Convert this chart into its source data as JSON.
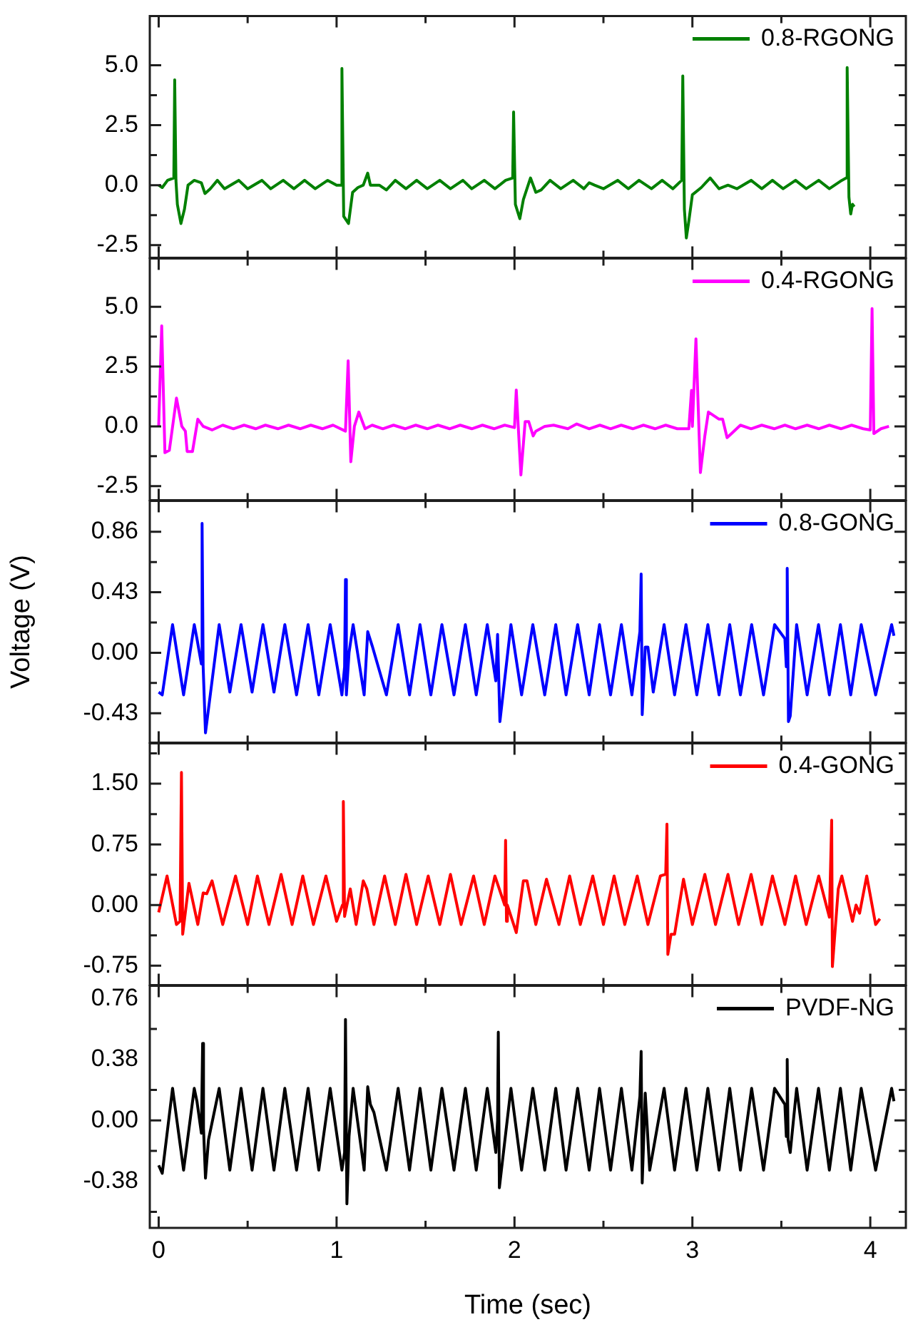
{
  "chart_data": [
    {
      "type": "line",
      "legend": "top right",
      "tick_labels": "y",
      "xlim": [
        -0.05,
        4.2
      ],
      "xticks": [
        0,
        {
          "value": 0.5,
          "label": null
        },
        1,
        {
          "value": 1.5,
          "label": null
        },
        2,
        {
          "value": 2.5,
          "label": null
        },
        3,
        {
          "value": 3.5,
          "label": null
        },
        4
      ],
      "ylim": [
        -3.03,
        7.05
      ],
      "yticks": [
        -2.5,
        {
          "value": -1.25,
          "label": null
        },
        {
          "value": 0,
          "label": "0.0"
        },
        {
          "value": 1.25,
          "label": null
        },
        2.5,
        {
          "value": 3.75,
          "label": null
        },
        {
          "value": 5,
          "label": "5.0"
        }
      ],
      "series": [
        {
          "name": "0.8-RGONG",
          "color": "#008000",
          "x": [
            0,
            0.02,
            0.05,
            0.085,
            0.09,
            0.097,
            0.105,
            0.125,
            0.145,
            0.165,
            0.2,
            0.24,
            0.26,
            0.29,
            0.33,
            0.37,
            0.45,
            0.5,
            0.58,
            0.63,
            0.7,
            0.76,
            0.82,
            0.88,
            0.95,
            1.0,
            1.025,
            1.03,
            1.04,
            1.067,
            1.09,
            1.12,
            1.15,
            1.175,
            1.19,
            1.24,
            1.28,
            1.33,
            1.39,
            1.45,
            1.51,
            1.58,
            1.64,
            1.71,
            1.76,
            1.83,
            1.89,
            1.95,
            1.99,
            1.995,
            2.005,
            2.03,
            2.05,
            2.09,
            2.12,
            2.15,
            2.2,
            2.26,
            2.33,
            2.39,
            2.42,
            2.45,
            2.5,
            2.58,
            2.64,
            2.7,
            2.77,
            2.83,
            2.89,
            2.94,
            2.946,
            2.955,
            2.966,
            2.98,
            3.0,
            3.05,
            3.1,
            3.15,
            3.2,
            3.25,
            3.33,
            3.39,
            3.45,
            3.51,
            3.58,
            3.64,
            3.71,
            3.77,
            3.84,
            3.865,
            3.87,
            3.88,
            3.89,
            3.9,
            3.91
          ],
          "values": [
            0,
            -0.1,
            0.2,
            0.3,
            4.39,
            0.2,
            -0.8,
            -1.6,
            -1.0,
            0,
            0.2,
            0.1,
            -0.35,
            -0.15,
            0.2,
            -0.15,
            0.2,
            -0.15,
            0.2,
            -0.15,
            0.2,
            -0.15,
            0.2,
            -0.15,
            0.2,
            0,
            0,
            4.86,
            -1.3,
            -1.6,
            -0.3,
            -0.1,
            0,
            0.5,
            0,
            0,
            -0.2,
            0.2,
            -0.15,
            0.2,
            -0.15,
            0.2,
            -0.15,
            0.2,
            -0.15,
            0.2,
            -0.15,
            0.2,
            0.3,
            3.05,
            -0.8,
            -1.4,
            -0.6,
            0.3,
            -0.3,
            -0.2,
            0.2,
            -0.15,
            0.2,
            -0.15,
            0.1,
            0,
            -0.15,
            0.2,
            -0.15,
            0.2,
            -0.15,
            0.2,
            -0.15,
            0.2,
            4.55,
            -1.0,
            -2.2,
            -1.5,
            -0.4,
            -0.1,
            0.3,
            -0.15,
            0,
            -0.15,
            0.2,
            -0.15,
            0.2,
            -0.15,
            0.2,
            -0.15,
            0.2,
            -0.15,
            0.2,
            0.3,
            4.9,
            -0.5,
            -1.2,
            -0.8,
            -0.9
          ]
        }
      ]
    },
    {
      "type": "line",
      "legend": "top right",
      "tick_labels": "y",
      "xlim": [
        -0.05,
        4.2
      ],
      "xticks": [
        0,
        {
          "value": 0.5,
          "label": null
        },
        1,
        {
          "value": 1.5,
          "label": null
        },
        2,
        {
          "value": 2.5,
          "label": null
        },
        3,
        {
          "value": 3.5,
          "label": null
        },
        4
      ],
      "ylim": [
        -3.09,
        7.02
      ],
      "yticks": [
        -2.5,
        {
          "value": -1.25,
          "label": null
        },
        {
          "value": 0,
          "label": "0.0"
        },
        {
          "value": 1.25,
          "label": null
        },
        2.5,
        {
          "value": 3.75,
          "label": null
        },
        {
          "value": 5,
          "label": "5.0"
        }
      ],
      "series": [
        {
          "name": "0.4-RGONG",
          "color": "#ff00ff",
          "x": [
            0,
            0.017,
            0.035,
            0.06,
            0.1,
            0.13,
            0.15,
            0.16,
            0.19,
            0.22,
            0.25,
            0.3,
            0.36,
            0.42,
            0.48,
            0.545,
            0.6,
            0.67,
            0.73,
            0.795,
            0.855,
            0.92,
            0.98,
            1.05,
            1.065,
            1.08,
            1.1,
            1.125,
            1.145,
            1.16,
            1.2,
            1.26,
            1.32,
            1.385,
            1.445,
            1.51,
            1.57,
            1.635,
            1.695,
            1.76,
            1.82,
            1.885,
            1.945,
            2.0,
            2.01,
            2.036,
            2.06,
            2.08,
            2.105,
            2.12,
            2.17,
            2.22,
            2.3,
            2.35,
            2.42,
            2.48,
            2.54,
            2.6,
            2.665,
            2.725,
            2.79,
            2.85,
            2.915,
            2.98,
            2.995,
            3.0,
            3.02,
            3.045,
            3.07,
            3.09,
            3.15,
            3.17,
            3.195,
            3.22,
            3.27,
            3.33,
            3.39,
            3.46,
            3.52,
            3.58,
            3.645,
            3.71,
            3.77,
            3.835,
            3.895,
            3.96,
            4.0,
            4.01,
            4.02,
            4.06,
            4.105
          ],
          "values": [
            0,
            4.2,
            -1.1,
            -1.0,
            1.18,
            0,
            -0.2,
            -1.05,
            -1.05,
            0.3,
            0,
            -0.15,
            0.05,
            -0.1,
            0.05,
            -0.1,
            0.05,
            -0.1,
            0.05,
            -0.1,
            0.05,
            -0.1,
            0.05,
            -0.2,
            2.74,
            -1.48,
            0,
            0.6,
            0.2,
            -0.1,
            0.05,
            -0.1,
            0.05,
            -0.1,
            0.05,
            -0.1,
            0.05,
            -0.1,
            0.05,
            -0.1,
            0.05,
            -0.1,
            0.05,
            -0.05,
            1.52,
            -2.03,
            0.2,
            0.2,
            -0.4,
            -0.2,
            0,
            0.05,
            -0.1,
            0.1,
            -0.1,
            0.05,
            -0.1,
            0.05,
            -0.1,
            0.05,
            -0.1,
            0.05,
            -0.1,
            -0.1,
            1.5,
            0,
            3.66,
            -1.93,
            -0.4,
            0.6,
            0.3,
            0.3,
            -0.47,
            -0.3,
            0.05,
            -0.1,
            0.05,
            -0.1,
            0.05,
            -0.1,
            0.05,
            -0.1,
            0.05,
            -0.1,
            0.05,
            -0.1,
            -0.15,
            4.92,
            -0.3,
            -0.1,
            0
          ]
        }
      ]
    },
    {
      "type": "line",
      "legend": "top right",
      "tick_labels": "y",
      "ylabel": "Voltage (V)",
      "xlim": [
        -0.05,
        4.2
      ],
      "xticks": [
        0,
        {
          "value": 0.5,
          "label": null
        },
        1,
        {
          "value": 1.5,
          "label": null
        },
        2,
        {
          "value": 2.5,
          "label": null
        },
        3,
        {
          "value": 3.5,
          "label": null
        },
        4
      ],
      "ylim": [
        -0.64,
        1.08
      ],
      "yticks": [
        -0.43,
        {
          "value": -0.215,
          "label": null
        },
        {
          "value": 0,
          "label": "0.00"
        },
        {
          "value": 0.215,
          "label": null
        },
        0.43,
        {
          "value": 0.645,
          "label": null
        },
        0.86
      ],
      "series": [
        {
          "name": "0.8-GONG",
          "color": "#0000ff",
          "x": [
            0,
            0.02,
            0.078,
            0.14,
            0.2,
            0.215,
            0.24,
            0.244,
            0.25,
            0.263,
            0.28,
            0.34,
            0.4,
            0.463,
            0.525,
            0.586,
            0.648,
            0.709,
            0.775,
            0.84,
            0.9,
            0.964,
            1.03,
            1.045,
            1.05,
            1.055,
            1.07,
            1.093,
            1.155,
            1.175,
            1.2,
            1.28,
            1.346,
            1.41,
            1.469,
            1.53,
            1.592,
            1.66,
            1.724,
            1.785,
            1.847,
            1.895,
            1.905,
            1.918,
            1.98,
            2.04,
            2.103,
            2.17,
            2.232,
            2.29,
            2.355,
            2.42,
            2.478,
            2.54,
            2.601,
            2.66,
            2.705,
            2.712,
            2.718,
            2.735,
            2.75,
            2.78,
            2.841,
            2.9,
            2.964,
            3.025,
            3.087,
            3.15,
            3.21,
            3.27,
            3.333,
            3.4,
            3.462,
            3.52,
            3.528,
            3.533,
            3.54,
            3.55,
            3.586,
            3.645,
            3.709,
            3.77,
            3.832,
            3.89,
            3.949,
            4.03,
            4.12,
            4.133
          ],
          "values": [
            -0.28,
            -0.3,
            0.2,
            -0.3,
            0.2,
            0.1,
            -0.08,
            0.92,
            -0.1,
            -0.57,
            -0.4,
            0.2,
            -0.28,
            0.2,
            -0.28,
            0.2,
            -0.28,
            0.2,
            -0.3,
            0.2,
            -0.3,
            0.2,
            -0.3,
            -0.1,
            0.52,
            -0.3,
            0,
            0.2,
            -0.3,
            0.15,
            0.05,
            -0.3,
            0.2,
            -0.3,
            0.2,
            -0.3,
            0.2,
            -0.3,
            0.2,
            -0.3,
            0.2,
            -0.2,
            0.13,
            -0.49,
            0.2,
            -0.3,
            0.2,
            -0.3,
            0.2,
            -0.3,
            0.2,
            -0.3,
            0.2,
            -0.3,
            0.2,
            -0.3,
            0.15,
            0.56,
            -0.44,
            0.04,
            0.04,
            -0.28,
            0.2,
            -0.3,
            0.2,
            -0.3,
            0.2,
            -0.3,
            0.2,
            -0.3,
            0.2,
            -0.3,
            0.2,
            0.1,
            -0.1,
            0.6,
            -0.49,
            -0.45,
            0.2,
            -0.3,
            0.2,
            -0.3,
            0.2,
            -0.3,
            0.2,
            -0.3,
            0.2,
            0.12
          ]
        }
      ]
    },
    {
      "type": "line",
      "legend": "top right",
      "tick_labels": "y",
      "xlim": [
        -0.05,
        4.2
      ],
      "xticks": [
        0,
        {
          "value": 0.5,
          "label": null
        },
        1,
        {
          "value": 1.5,
          "label": null
        },
        2,
        {
          "value": 2.5,
          "label": null
        },
        3,
        {
          "value": 3.5,
          "label": null
        },
        4
      ],
      "ylim": [
        -0.99,
        2.0
      ],
      "yticks": [
        -0.75,
        {
          "value": -0.375,
          "label": null
        },
        {
          "value": 0,
          "label": "0.00"
        },
        {
          "value": 0.375,
          "label": null
        },
        0.75,
        {
          "value": 1.125,
          "label": null
        },
        {
          "value": 1.5,
          "label": "1.50"
        },
        {
          "value": 1.875,
          "label": null
        }
      ],
      "series": [
        {
          "name": "0.4-GONG",
          "color": "#ff0000",
          "x": [
            0,
            0.047,
            0.1,
            0.12,
            0.128,
            0.135,
            0.17,
            0.22,
            0.25,
            0.27,
            0.3,
            0.36,
            0.432,
            0.5,
            0.555,
            0.62,
            0.688,
            0.75,
            0.81,
            0.87,
            0.94,
            1.0,
            1.033,
            1.038,
            1.045,
            1.077,
            1.11,
            1.15,
            1.17,
            1.21,
            1.27,
            1.33,
            1.39,
            1.45,
            1.515,
            1.58,
            1.64,
            1.7,
            1.77,
            1.83,
            1.89,
            1.945,
            1.95,
            1.955,
            1.96,
            2.01,
            2.05,
            2.07,
            2.12,
            2.18,
            2.25,
            2.31,
            2.37,
            2.44,
            2.5,
            2.56,
            2.62,
            2.69,
            2.75,
            2.82,
            2.85,
            2.857,
            2.862,
            2.88,
            2.9,
            2.95,
            3.0,
            3.07,
            3.13,
            3.2,
            3.26,
            3.33,
            3.39,
            3.45,
            3.52,
            3.58,
            3.64,
            3.71,
            3.77,
            3.783,
            3.787,
            3.82,
            3.84,
            3.9,
            3.92,
            3.94,
            3.98,
            4.03,
            4.054
          ],
          "values": [
            -0.09,
            0.36,
            -0.24,
            -0.2,
            1.64,
            -0.36,
            0.27,
            -0.24,
            0.15,
            0.14,
            0.3,
            -0.24,
            0.36,
            -0.24,
            0.36,
            -0.24,
            0.38,
            -0.24,
            0.36,
            -0.24,
            0.36,
            -0.2,
            0,
            1.28,
            -0.14,
            0.2,
            -0.24,
            0.3,
            0.2,
            -0.24,
            0.36,
            -0.24,
            0.38,
            -0.24,
            0.36,
            -0.24,
            0.38,
            -0.24,
            0.36,
            -0.24,
            0.36,
            0,
            0.8,
            -0.2,
            0,
            -0.34,
            0.3,
            0.3,
            -0.24,
            0.32,
            -0.24,
            0.36,
            -0.24,
            0.36,
            -0.24,
            0.36,
            -0.24,
            0.36,
            -0.24,
            0.36,
            0.38,
            1.0,
            -0.61,
            -0.36,
            -0.36,
            0.32,
            -0.24,
            0.38,
            -0.24,
            0.38,
            -0.24,
            0.38,
            -0.24,
            0.36,
            -0.24,
            0.36,
            -0.24,
            0.36,
            -0.15,
            1.05,
            -0.76,
            0.2,
            0.36,
            -0.2,
            0,
            -0.1,
            0.36,
            -0.24,
            -0.17
          ]
        }
      ]
    },
    {
      "type": "line",
      "legend": "top right",
      "xlabel": "Time (sec)",
      "xlim": [
        -0.05,
        4.2
      ],
      "xticks": [
        0,
        {
          "value": 0.5,
          "label": null
        },
        1,
        {
          "value": 1.5,
          "label": null
        },
        2,
        {
          "value": 2.5,
          "label": null
        },
        3,
        {
          "value": 3.5,
          "label": null
        },
        4
      ],
      "ylim": [
        -0.67,
        0.84
      ],
      "yticks": [
        {
          "value": -0.57,
          "label": null
        },
        -0.38,
        {
          "value": -0.19,
          "label": null
        },
        {
          "value": 0,
          "label": "0.00"
        },
        {
          "value": 0.19,
          "label": null
        },
        0.38,
        {
          "value": 0.57,
          "label": null
        },
        0.76
      ],
      "series": [
        {
          "name": "PVDF-NG",
          "color": "#000000",
          "x": [
            0,
            0.02,
            0.078,
            0.14,
            0.2,
            0.215,
            0.24,
            0.247,
            0.252,
            0.263,
            0.28,
            0.34,
            0.4,
            0.463,
            0.525,
            0.586,
            0.648,
            0.709,
            0.775,
            0.84,
            0.9,
            0.964,
            1.03,
            1.045,
            1.05,
            1.058,
            1.07,
            1.093,
            1.155,
            1.175,
            1.19,
            1.21,
            1.28,
            1.346,
            1.41,
            1.469,
            1.53,
            1.592,
            1.66,
            1.724,
            1.785,
            1.847,
            1.895,
            1.905,
            1.909,
            1.915,
            1.98,
            2.04,
            2.103,
            2.17,
            2.232,
            2.29,
            2.355,
            2.42,
            2.478,
            2.54,
            2.601,
            2.66,
            2.705,
            2.712,
            2.718,
            2.735,
            2.76,
            2.841,
            2.9,
            2.964,
            3.025,
            3.087,
            3.15,
            3.21,
            3.27,
            3.333,
            3.4,
            3.462,
            3.52,
            3.528,
            3.533,
            3.538,
            3.55,
            3.586,
            3.645,
            3.709,
            3.77,
            3.832,
            3.89,
            3.949,
            4.03,
            4.12,
            4.133
          ],
          "values": [
            -0.28,
            -0.33,
            0.2,
            -0.31,
            0.2,
            0.12,
            -0.08,
            0.48,
            -0.05,
            -0.36,
            -0.12,
            0.2,
            -0.31,
            0.2,
            -0.31,
            0.2,
            -0.31,
            0.2,
            -0.31,
            0.2,
            -0.31,
            0.2,
            -0.31,
            -0.2,
            0.63,
            -0.52,
            -0.1,
            0.2,
            -0.31,
            0.21,
            0.1,
            0.05,
            -0.31,
            0.2,
            -0.31,
            0.2,
            -0.31,
            0.2,
            -0.31,
            0.2,
            -0.31,
            0.2,
            -0.2,
            0,
            0.55,
            -0.42,
            0.2,
            -0.31,
            0.2,
            -0.31,
            0.2,
            -0.31,
            0.2,
            -0.31,
            0.2,
            -0.31,
            0.2,
            -0.31,
            0.15,
            0.43,
            -0.39,
            0.17,
            -0.31,
            0.2,
            -0.31,
            0.2,
            -0.31,
            0.2,
            -0.31,
            0.2,
            -0.31,
            0.2,
            -0.31,
            0.2,
            0.1,
            -0.1,
            0.38,
            -0.12,
            -0.2,
            0.2,
            -0.31,
            0.2,
            -0.31,
            0.2,
            -0.31,
            0.2,
            -0.31,
            0.2,
            0.12
          ]
        }
      ]
    }
  ]
}
